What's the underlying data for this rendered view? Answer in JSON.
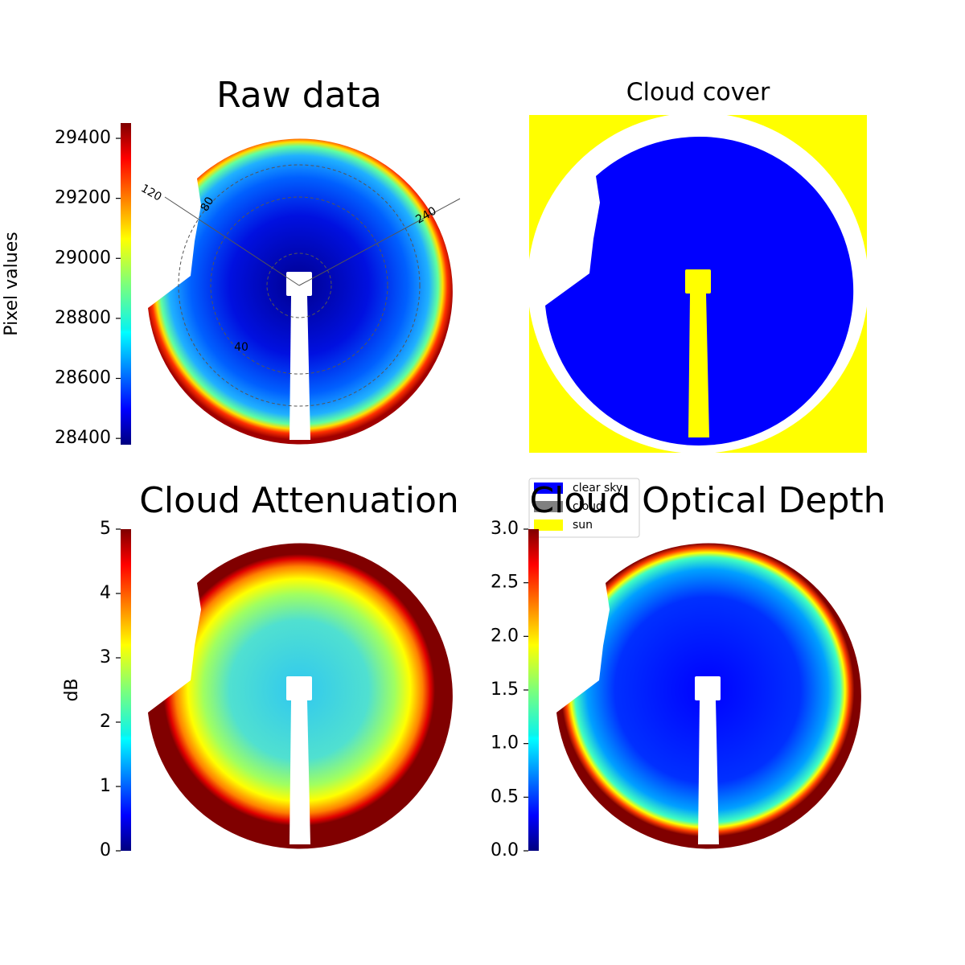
{
  "chart_data": [
    {
      "type": "image",
      "title": "Raw data",
      "ylabel": "Pixel values",
      "colormap": "jet",
      "ylim": [
        28379,
        29451
      ],
      "yticks": [
        28400,
        28600,
        28800,
        29000,
        29200,
        29400
      ],
      "polar_labels": [
        120,
        80,
        240,
        40
      ]
    },
    {
      "type": "categorical-image",
      "title": "Cloud cover",
      "legend": [
        {
          "name": "clear sky",
          "color": "#0000ff"
        },
        {
          "name": "cloud",
          "color": "#808080"
        },
        {
          "name": "sun",
          "color": "#ffff00"
        }
      ]
    },
    {
      "type": "image",
      "title": "Cloud Attenuation",
      "ylabel": "dB",
      "colormap": "jet",
      "ylim": [
        0,
        5
      ],
      "yticks": [
        0,
        1,
        2,
        3,
        4,
        5
      ]
    },
    {
      "type": "image",
      "title": "Cloud Optical Depth",
      "colormap": "jet",
      "ylim": [
        0,
        3
      ],
      "yticks": [
        {
          "value": 0,
          "label": "0.0"
        },
        0.5,
        {
          "value": 1,
          "label": "1.0"
        },
        1.5,
        {
          "value": 2,
          "label": "2.0"
        },
        2.5,
        {
          "value": 3,
          "label": "3.0"
        }
      ]
    }
  ]
}
